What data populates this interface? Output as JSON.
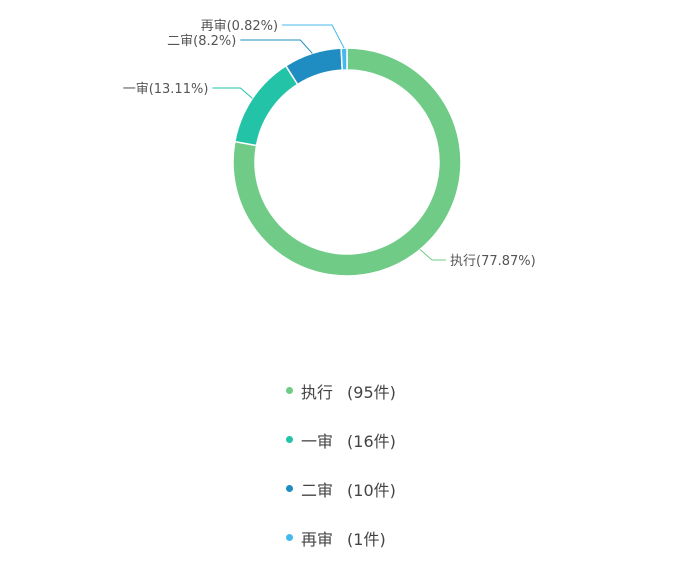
{
  "chart_data": {
    "type": "pie",
    "donut": true,
    "categories": [
      "执行",
      "一审",
      "二审",
      "再审"
    ],
    "values": [
      95,
      16,
      10,
      1
    ],
    "percent_labels": [
      "执行(77.87%)",
      "一审(13.11%)",
      "二审(8.2%)",
      "再审(0.82%)"
    ],
    "legend": [
      "执行",
      "一审",
      "二审",
      "再审"
    ],
    "legend_counts": [
      "(95件)",
      "(16件)",
      "(10件)",
      "(1件)"
    ],
    "colors": [
      "#6fcb86",
      "#23c3a7",
      "#1f8dc2",
      "#45b8ef"
    ],
    "legend_position": "bottom"
  }
}
